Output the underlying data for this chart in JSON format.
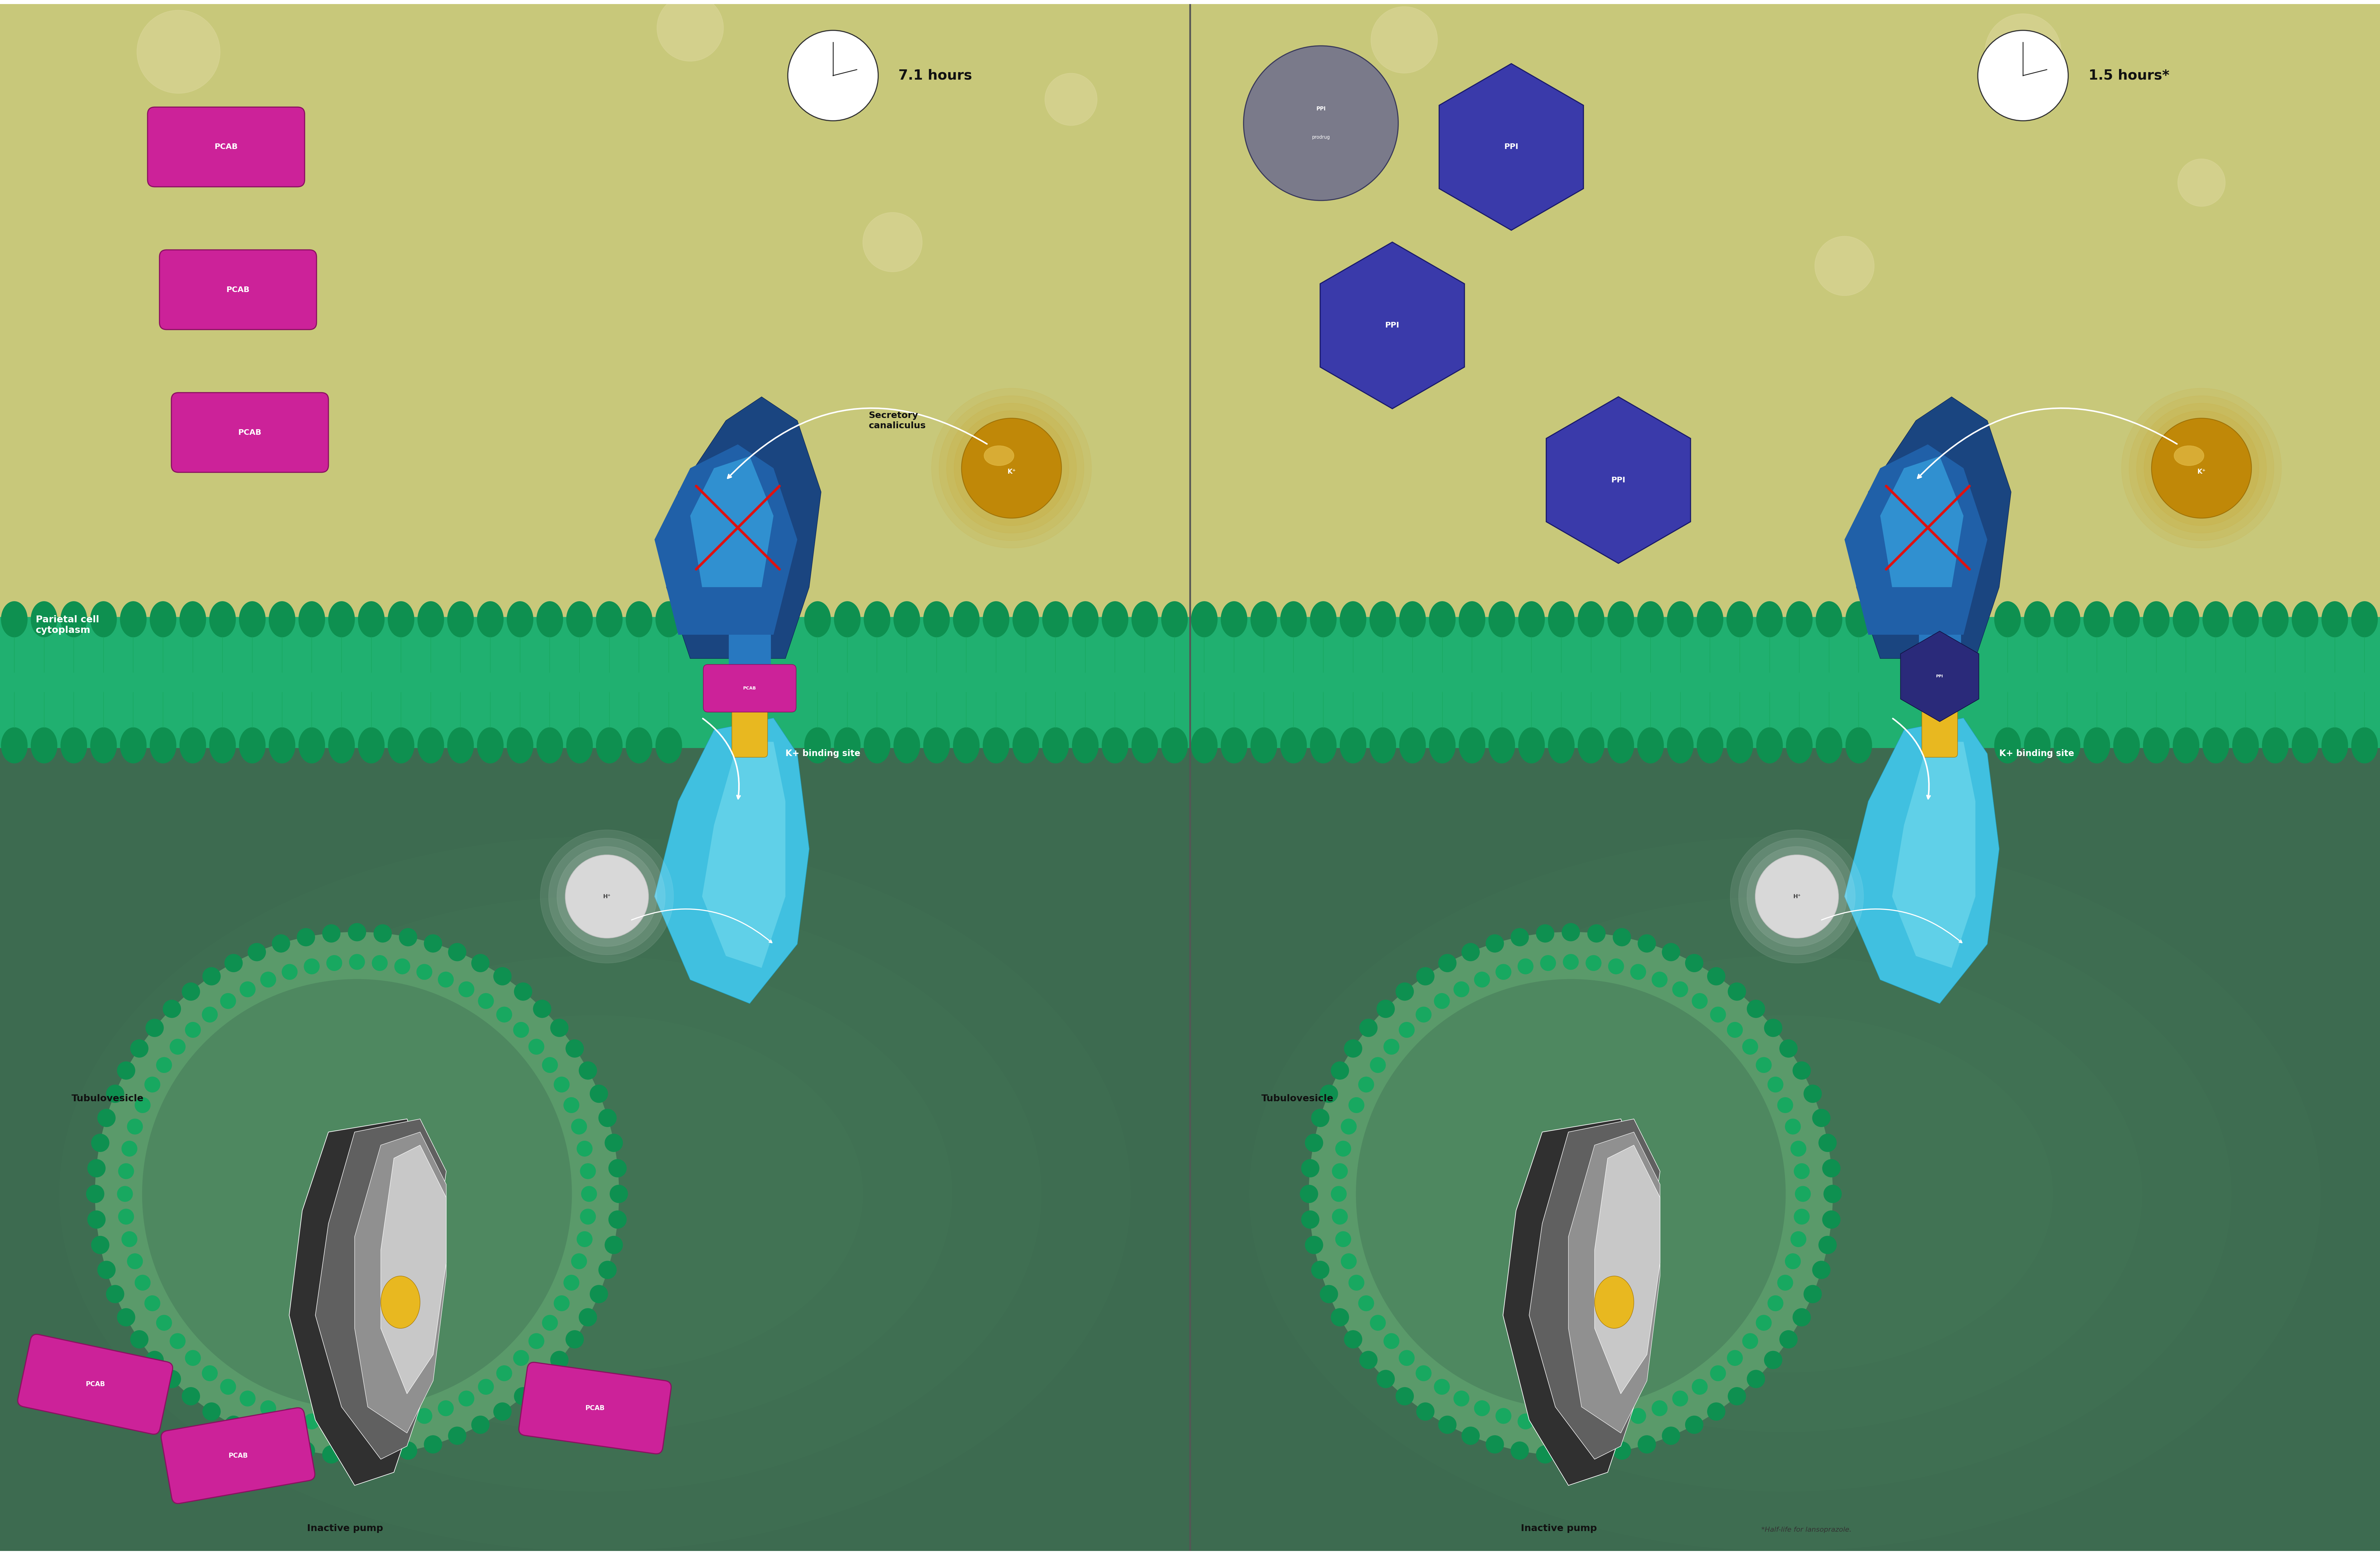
{
  "fig_width": 76.51,
  "fig_height": 50.0,
  "left_title": "7.1 hours",
  "right_title": "1.5 hours*",
  "bg_yellow": "#c8c87a",
  "bg_green_dark": "#3d6b50",
  "bg_green_mid": "#4a7a5a",
  "membrane_green": "#2ec87a",
  "membrane_dark_green": "#16a060",
  "membrane_teal": "#20c090",
  "pcab_magenta": "#cc2299",
  "pcab_dark": "#8a1060",
  "ppi_purple": "#3a3aaa",
  "ppi_dark": "#1a1a6a",
  "ppi_prodrug_gray": "#7a7a8a",
  "k_gold": "#c89010",
  "k_gold_light": "#e8b030",
  "h_gray": "#b0b0b0",
  "pump_dark_blue": "#1a5090",
  "pump_mid_blue": "#2878c0",
  "pump_cyan": "#30b0d8",
  "pump_light_cyan": "#60d0e8",
  "inactive_dark": "#404040",
  "inactive_mid": "#888888",
  "inactive_light": "#d0d0d0",
  "inactive_white": "#f0f0f0",
  "yellow_site": "#e8b820",
  "left_label_parietal": "Parietal cell\ncytoplasm",
  "left_label_secretory": "Secretory\ncanaliculus",
  "left_label_k_binding": "K+ binding site",
  "left_label_tubulovesicle": "Tubulovesicle",
  "left_label_inactive": "Inactive pump",
  "right_label_k_binding": "K+ binding site",
  "right_label_tubulovesicle": "Tubulovesicle",
  "right_label_inactive": "Inactive pump",
  "footnote": "*Half-life for lansoprazole."
}
